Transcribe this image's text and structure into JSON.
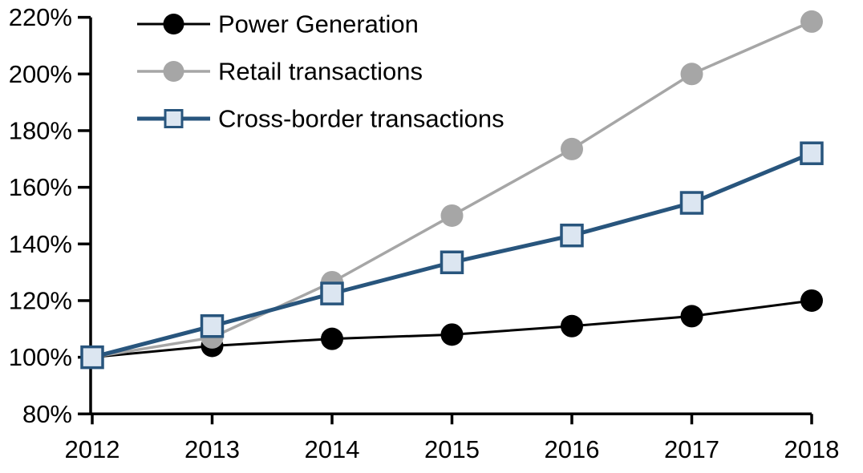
{
  "chart_data": {
    "type": "line",
    "title": "",
    "xlabel": "",
    "ylabel": "",
    "units": "%",
    "grid": false,
    "legend_position": "top-left",
    "ylim": [
      80,
      220
    ],
    "y_tick_step": 20,
    "y_tick_labels": [
      "220%",
      "200%",
      "180%",
      "160%",
      "140%",
      "120%",
      "100%",
      "80%"
    ],
    "y_tick_values": [
      220,
      200,
      180,
      160,
      140,
      120,
      100,
      80
    ],
    "categories": [
      "2012",
      "2013",
      "2014",
      "2015",
      "2016",
      "2017",
      "2018"
    ],
    "series": [
      {
        "name": "Power Generation",
        "color": "#000000",
        "marker": "circle",
        "marker_fill": "#000000",
        "line_width": 3,
        "values": [
          100,
          104,
          106.5,
          108,
          111,
          114.5,
          120
        ]
      },
      {
        "name": "Retail transactions",
        "color": "#A6A6A6",
        "marker": "circle",
        "marker_fill": "#A6A6A6",
        "line_width": 3.5,
        "values": [
          100,
          107,
          126.5,
          150,
          173.5,
          200,
          218.5
        ]
      },
      {
        "name": "Cross-border transactions",
        "color": "#28557D",
        "marker": "square",
        "marker_fill": "#DCE6F1",
        "line_width": 5,
        "values": [
          100,
          111,
          122.5,
          133.5,
          143,
          154.5,
          172
        ]
      }
    ]
  },
  "colors": {
    "axis": "#000000",
    "background": "#FFFFFF",
    "accent_blue": "#28557D",
    "accent_blue_light": "#DCE6F1",
    "gray": "#A6A6A6"
  }
}
